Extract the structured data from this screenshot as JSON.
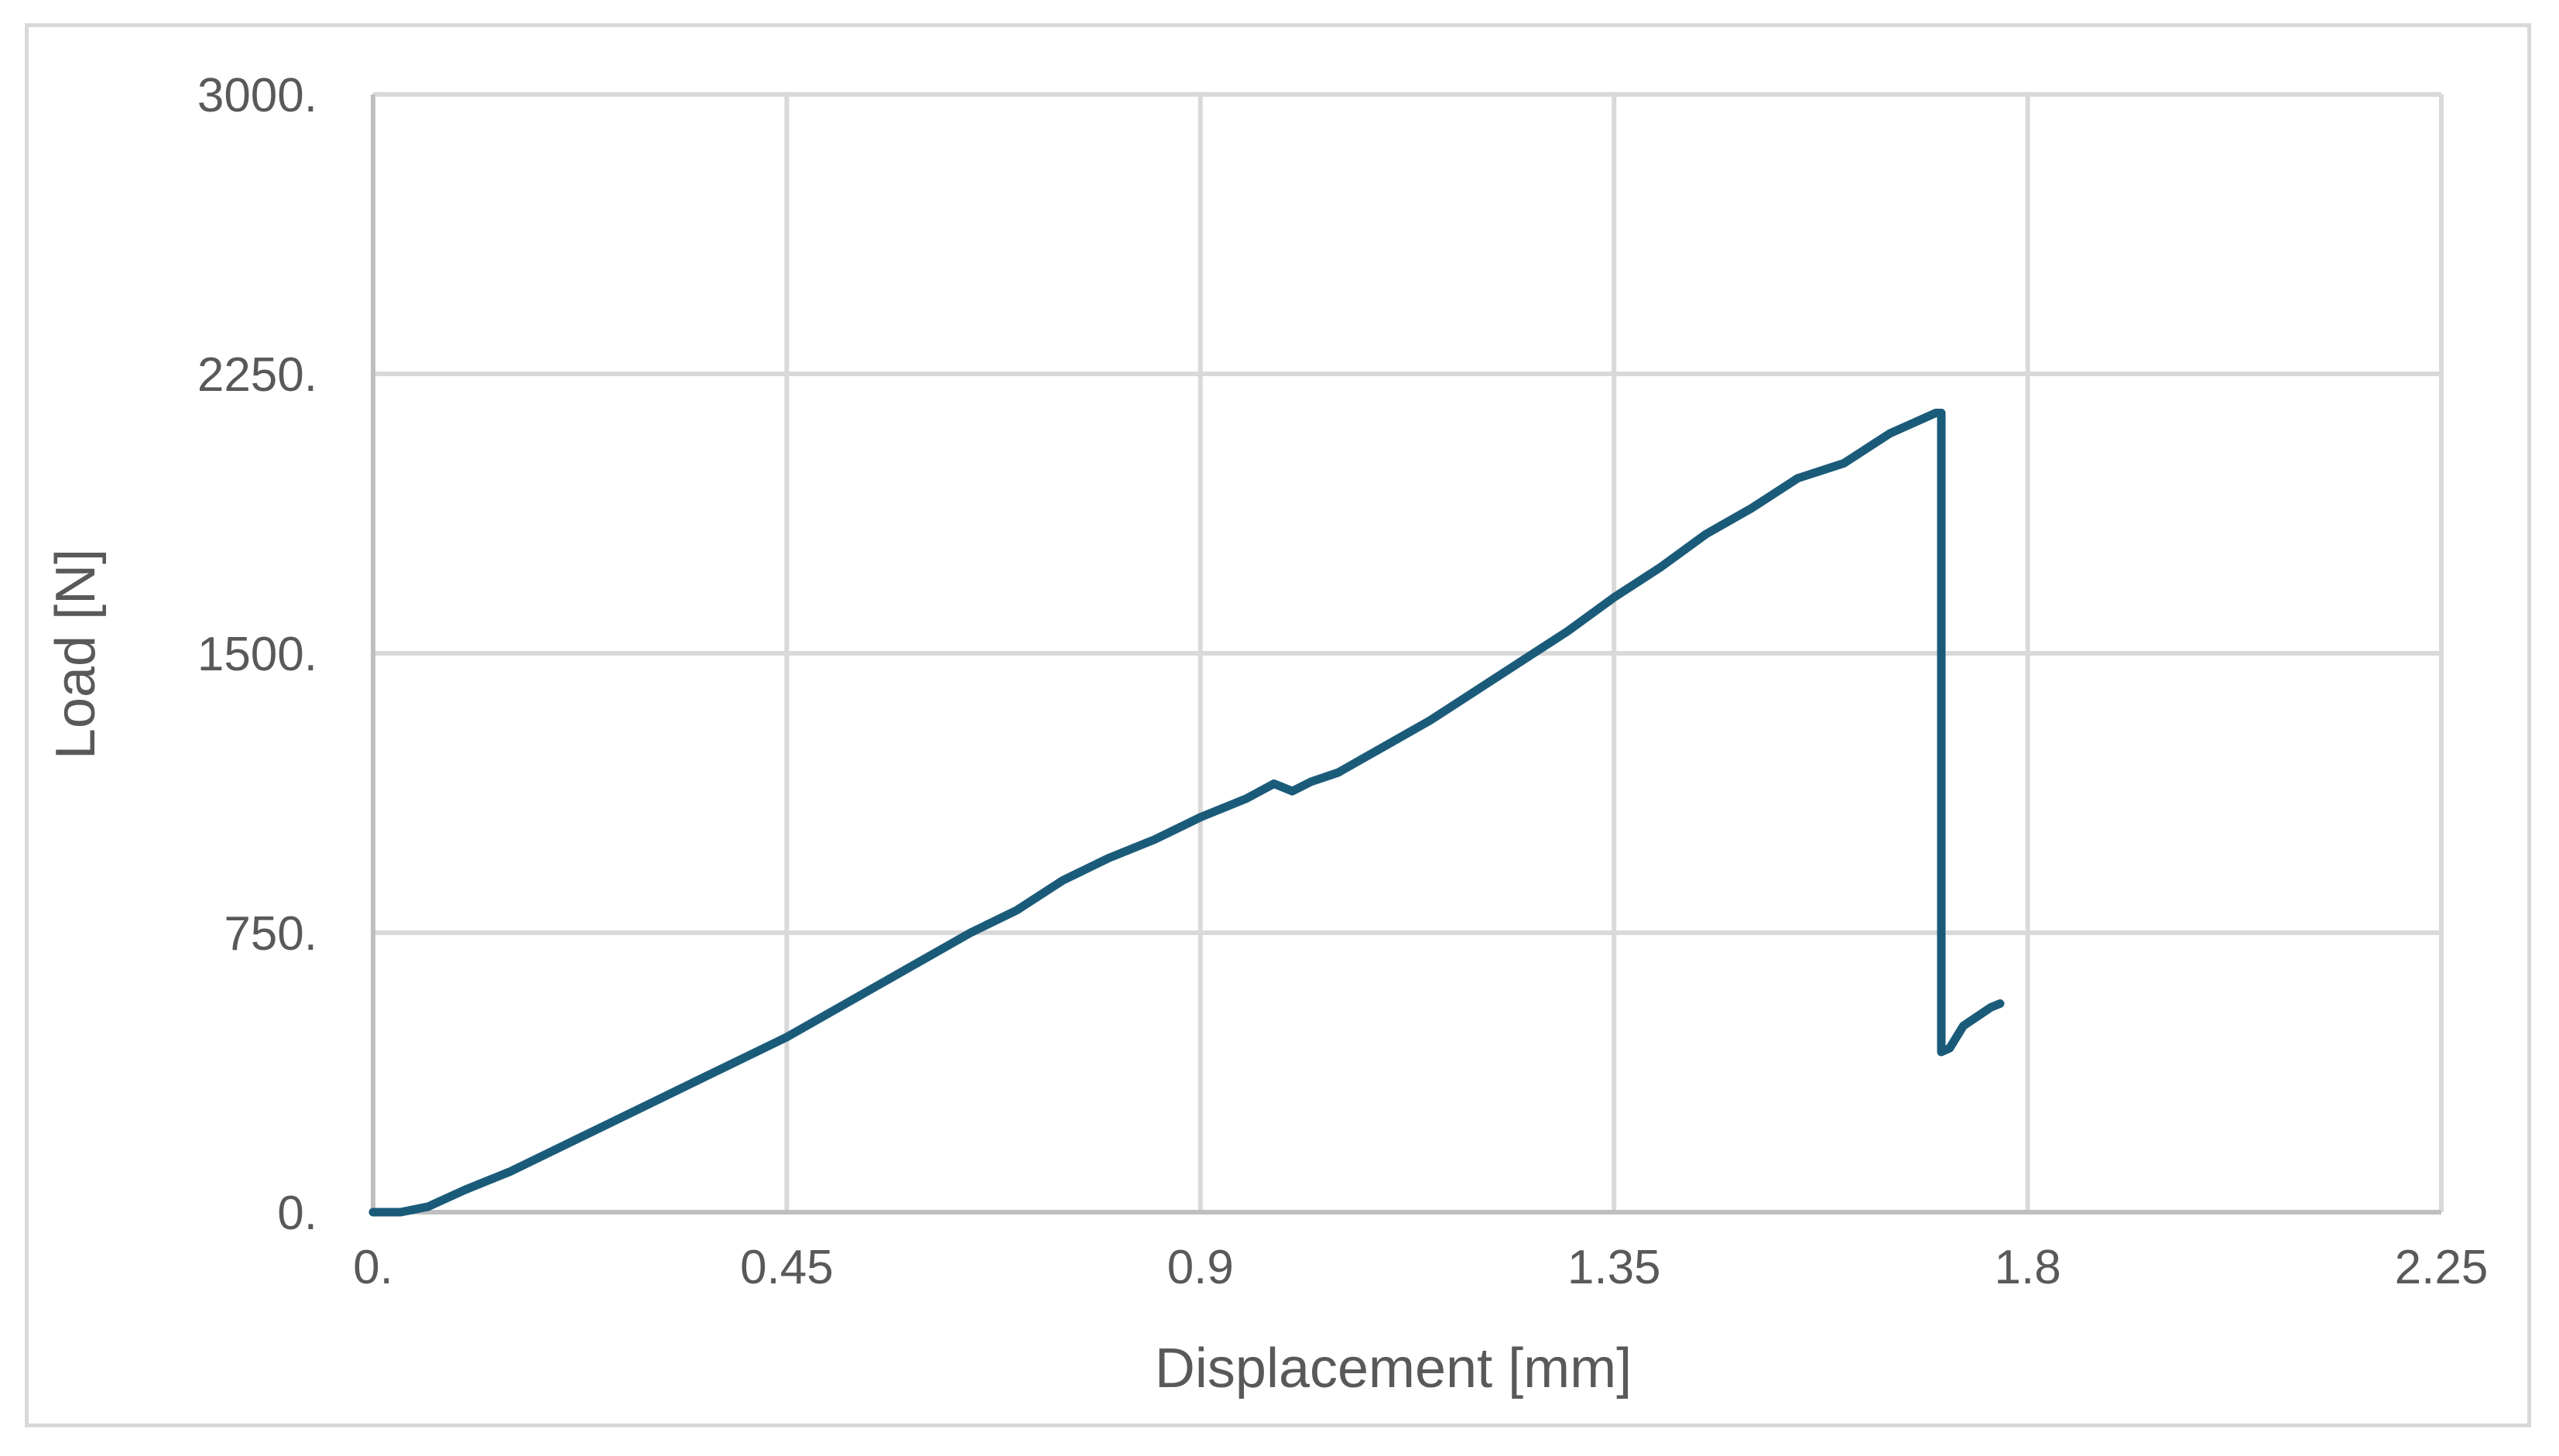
{
  "chart_data": {
    "type": "line",
    "title": "",
    "xlabel": "Displacement [mm]",
    "ylabel": "Load [N]",
    "xlim": [
      0,
      2.25
    ],
    "ylim": [
      0,
      3000
    ],
    "grid": true,
    "legend": "none",
    "x_ticks": [
      {
        "value": 0,
        "label": "0."
      },
      {
        "value": 0.45,
        "label": "0.45"
      },
      {
        "value": 0.9,
        "label": "0.9"
      },
      {
        "value": 1.35,
        "label": "1.35"
      },
      {
        "value": 1.8,
        "label": "1.8"
      },
      {
        "value": 2.25,
        "label": "2.25"
      }
    ],
    "y_ticks": [
      {
        "value": 0,
        "label": "0."
      },
      {
        "value": 750,
        "label": "750."
      },
      {
        "value": 1500,
        "label": "1500."
      },
      {
        "value": 2250,
        "label": "2250."
      },
      {
        "value": 3000,
        "label": "3000."
      }
    ],
    "colors": {
      "line": "#1b5b7a",
      "grid": "#d9d9d9"
    },
    "series": [
      {
        "x": [
          0,
          0.03,
          0.06,
          0.1,
          0.15,
          0.2,
          0.25,
          0.3,
          0.35,
          0.4,
          0.45,
          0.5,
          0.55,
          0.6,
          0.65,
          0.7,
          0.75,
          0.8,
          0.85,
          0.9,
          0.95,
          0.98,
          1.0,
          1.02,
          1.05,
          1.1,
          1.15,
          1.2,
          1.25,
          1.3,
          1.35,
          1.4,
          1.45,
          1.5,
          1.55,
          1.6,
          1.65,
          1.7,
          1.706,
          1.706,
          1.706,
          1.706,
          1.715,
          1.73,
          1.76,
          1.77
        ],
        "y": [
          0,
          0,
          15,
          60,
          110,
          170,
          230,
          290,
          350,
          410,
          470,
          540,
          610,
          680,
          750,
          810,
          890,
          950,
          1000,
          1060,
          1110,
          1150,
          1130,
          1155,
          1180,
          1250,
          1320,
          1400,
          1480,
          1560,
          1650,
          1730,
          1820,
          1890,
          1970,
          2010,
          2090,
          2145,
          2145,
          1430,
          1050,
          430,
          440,
          500,
          550,
          560
        ]
      }
    ]
  }
}
